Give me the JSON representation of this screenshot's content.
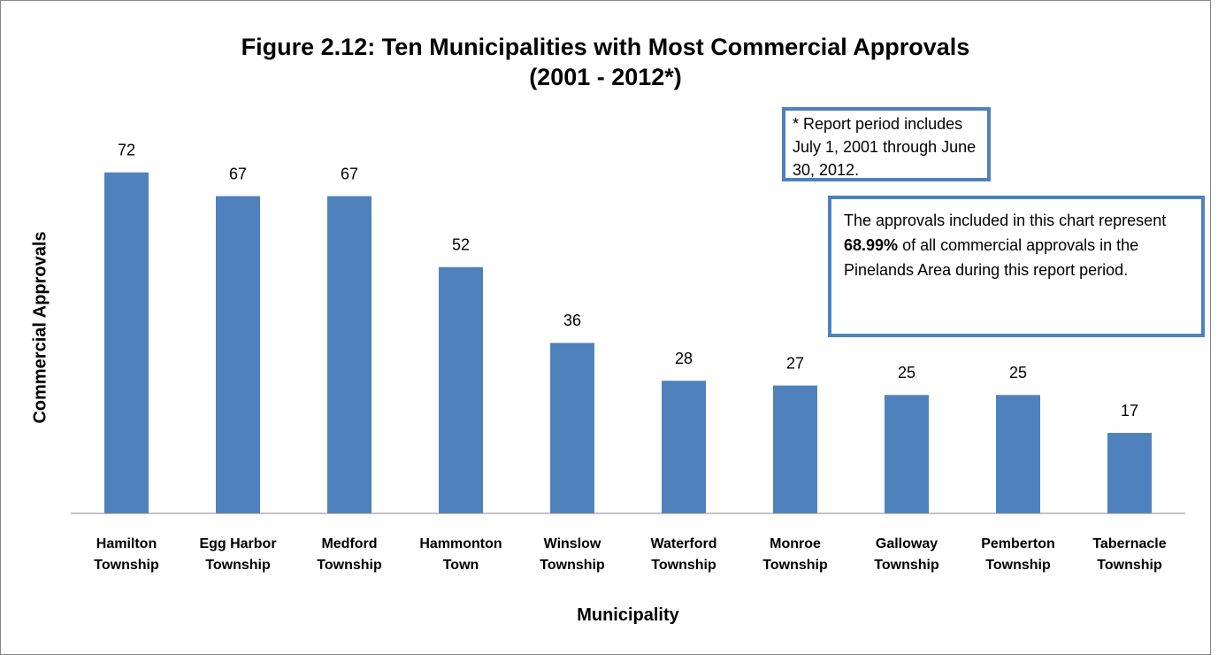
{
  "chart_data": {
    "type": "bar",
    "title": [
      "Figure 2.12: Ten Municipalities with Most Commercial Approvals",
      "(2001 - 2012*)"
    ],
    "y_label": "Commercial Approvals",
    "x_label": "Municipality",
    "categories": [
      "Hamilton Township",
      "Egg Harbor Township",
      "Medford Township",
      "Hammonton Town",
      "Winslow Township",
      "Waterford Township",
      "Monroe Township",
      "Galloway Township",
      "Pemberton Township",
      "Tabernacle Township"
    ],
    "values": [
      72,
      67,
      67,
      52,
      36,
      28,
      27,
      25,
      25,
      17
    ],
    "color": "#4f81bd",
    "ylim": [
      0,
      80
    ],
    "annotations": [
      {
        "text": [
          "* Report period includes July 1, 2001 through June 30, 2012."
        ]
      },
      {
        "text": [
          "The approvals included in this chart represent ",
          "68.99%",
          " of all commercial approvals in the Pinelands Area during this report period."
        ]
      }
    ]
  }
}
